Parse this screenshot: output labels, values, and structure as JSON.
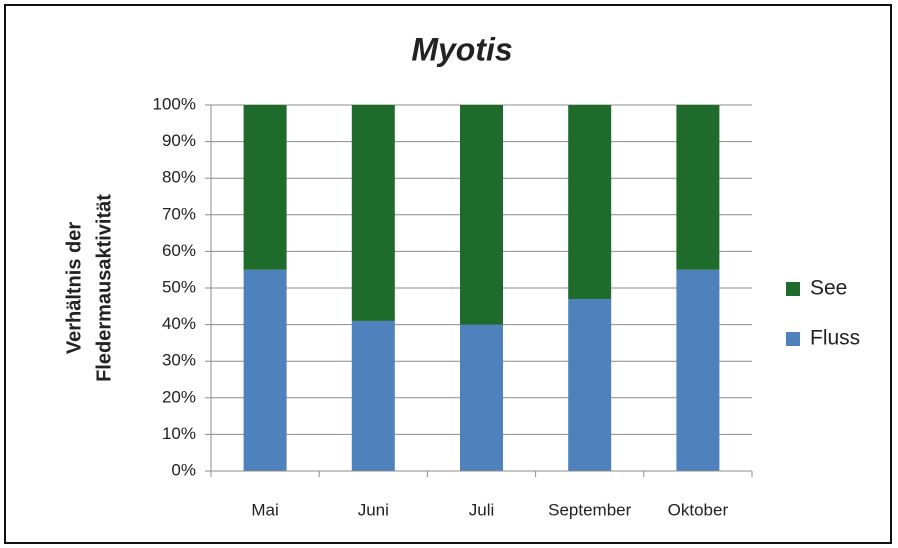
{
  "chart_data": {
    "type": "stacked_bar",
    "title": "Myotis",
    "y_label": [
      "Verhältnis der",
      "Fledermausaktivität"
    ],
    "categories": [
      "Mai",
      "Juni",
      "Juli",
      "September",
      "Oktober"
    ],
    "series": [
      {
        "name": "Fluss",
        "color": "#4f81bd",
        "values": [
          55,
          41,
          40,
          47,
          55
        ]
      },
      {
        "name": "See",
        "color": "#1f6b2c",
        "values": [
          45,
          59,
          60,
          53,
          45
        ]
      }
    ],
    "ylim": [
      0,
      100
    ],
    "yticks": [
      {
        "value": 0,
        "label": "0%"
      },
      {
        "value": 10,
        "label": "10%"
      },
      {
        "value": 20,
        "label": "20%"
      },
      {
        "value": 30,
        "label": "30%"
      },
      {
        "value": 40,
        "label": "40%"
      },
      {
        "value": 50,
        "label": "50%"
      },
      {
        "value": 60,
        "label": "60%"
      },
      {
        "value": 70,
        "label": "70%"
      },
      {
        "value": 80,
        "label": "80%"
      },
      {
        "value": 90,
        "label": "90%"
      },
      {
        "value": 100,
        "label": "100%"
      }
    ],
    "grid": true,
    "legend": "right"
  }
}
